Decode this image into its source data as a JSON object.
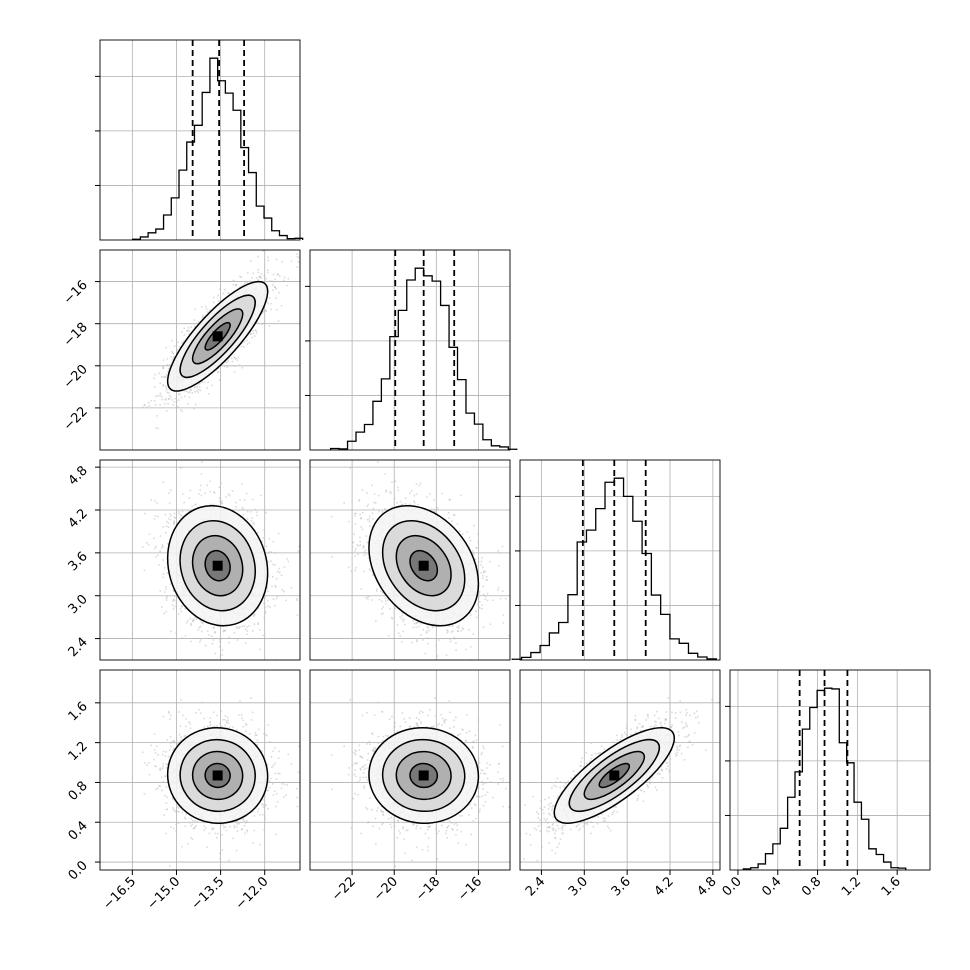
{
  "chart_data": {
    "type": "corner",
    "parameters": [
      {
        "name": "",
        "range": [
          -17.6,
          -10.8
        ],
        "ticks": [
          {
            "value": -16.5,
            "label": "−16.5"
          },
          {
            "value": -15.0,
            "label": "−15.0"
          },
          {
            "value": -13.5,
            "label": "−13.5"
          },
          {
            "value": -12.0,
            "label": "−12.0"
          }
        ],
        "quantiles": [
          -14.45,
          -13.55,
          -12.7
        ],
        "mean": -13.6,
        "sd": 0.85,
        "hist_bins": 22
      },
      {
        "name": "",
        "range": [
          -24.0,
          -14.5
        ],
        "ticks": [
          {
            "value": -22,
            "label": "−22"
          },
          {
            "value": -20,
            "label": "−20"
          },
          {
            "value": -18,
            "label": "−18"
          },
          {
            "value": -16,
            "label": "−16"
          }
        ],
        "quantiles": [
          -19.95,
          -18.6,
          -17.15
        ],
        "mean": -18.6,
        "sd": 1.3,
        "hist_bins": 22
      },
      {
        "name": "",
        "range": [
          2.1,
          4.9
        ],
        "ticks": [
          {
            "value": 2.4,
            "label": "2.4"
          },
          {
            "value": 3.0,
            "label": "3.0"
          },
          {
            "value": 3.6,
            "label": "3.6"
          },
          {
            "value": 4.2,
            "label": "4.2"
          },
          {
            "value": 4.8,
            "label": "4.8"
          }
        ],
        "quantiles": [
          2.98,
          3.42,
          3.86
        ],
        "mean": 3.42,
        "sd": 0.42,
        "hist_bins": 22
      },
      {
        "name": "",
        "range": [
          -0.08,
          1.93
        ],
        "ticks": [
          {
            "value": 0.0,
            "label": "0.0"
          },
          {
            "value": 0.4,
            "label": "0.4"
          },
          {
            "value": 0.8,
            "label": "0.8"
          },
          {
            "value": 1.2,
            "label": "1.2"
          },
          {
            "value": 1.6,
            "label": "1.6"
          }
        ],
        "quantiles": [
          0.62,
          0.87,
          1.1
        ],
        "mean": 0.87,
        "sd": 0.24,
        "hist_bins": 22
      }
    ],
    "correlations": [
      [
        1.0,
        0.82,
        -0.12,
        -0.02
      ],
      [
        0.82,
        1.0,
        -0.3,
        -0.02
      ],
      [
        -0.12,
        -0.3,
        1.0,
        0.78
      ],
      [
        -0.02,
        -0.02,
        0.78,
        1.0
      ]
    ],
    "grid": true,
    "contour_levels": 4,
    "colors": {
      "line": "#000000",
      "points": "#bdbdbd",
      "grid": "#b0b0b0"
    }
  }
}
